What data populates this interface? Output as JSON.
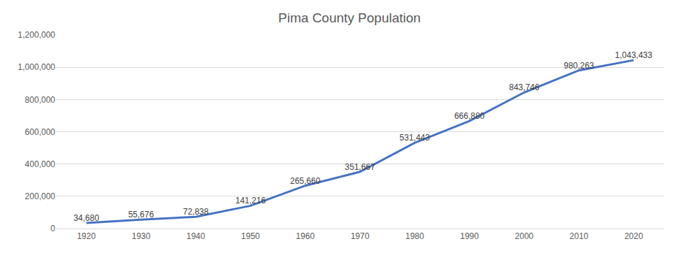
{
  "chart_data": {
    "type": "line",
    "title": "Pima County Population",
    "categories": [
      "1920",
      "1930",
      "1940",
      "1950",
      "1960",
      "1970",
      "1980",
      "1990",
      "2000",
      "2010",
      "2020"
    ],
    "values": [
      34680,
      55676,
      72838,
      141216,
      265660,
      351667,
      531443,
      666880,
      843746,
      980263,
      1043433
    ],
    "value_labels": [
      "34,680",
      "55,676",
      "72,838",
      "141,216",
      "265,660",
      "351,667",
      "531,443",
      "666,880",
      "843,746",
      "980,263",
      "1,043,433"
    ],
    "color": "#4472c4",
    "ylim": [
      0,
      1200000
    ],
    "yticks": [
      0,
      {
        "value": 200000,
        "label": "200,000"
      },
      {
        "value": 400000,
        "label": "400,000"
      },
      {
        "value": 600000,
        "label": "600,000"
      },
      {
        "value": 800000,
        "label": "800,000"
      },
      {
        "value": 1000000,
        "label": "1,000,000"
      },
      {
        "value": 1200000,
        "label": "1,200,000"
      }
    ],
    "grid": true,
    "data_labels": true
  }
}
